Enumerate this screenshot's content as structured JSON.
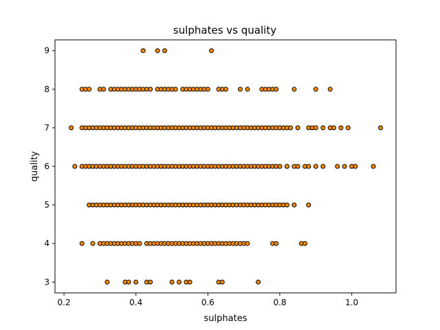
{
  "chart_data": {
    "type": "scatter",
    "title": "sulphates vs quality",
    "xlabel": "sulphates",
    "ylabel": "quality",
    "xlim": [
      0.175,
      1.123
    ],
    "ylim": [
      2.72,
      9.28
    ],
    "xticks": [
      0.2,
      0.4,
      0.6,
      0.8,
      1.0
    ],
    "xtick_labels": [
      "0.2",
      "0.4",
      "0.6",
      "0.8",
      "1.0"
    ],
    "yticks": [
      3,
      4,
      5,
      6,
      7,
      8,
      9
    ],
    "ytick_labels": [
      "3",
      "4",
      "5",
      "6",
      "7",
      "8",
      "9"
    ],
    "grid": false,
    "marker_color": "#ff8c00",
    "marker_edge_color": "#000000",
    "series": [
      {
        "points": [
          [
            0.42,
            9
          ],
          [
            0.46,
            9
          ],
          [
            0.48,
            9
          ],
          [
            0.61,
            9
          ],
          [
            0.25,
            8
          ],
          [
            0.26,
            8
          ],
          [
            0.27,
            8
          ],
          [
            0.3,
            8
          ],
          [
            0.31,
            8
          ],
          [
            0.33,
            8
          ],
          [
            0.34,
            8
          ],
          [
            0.35,
            8
          ],
          [
            0.36,
            8
          ],
          [
            0.37,
            8
          ],
          [
            0.38,
            8
          ],
          [
            0.39,
            8
          ],
          [
            0.4,
            8
          ],
          [
            0.41,
            8
          ],
          [
            0.42,
            8
          ],
          [
            0.43,
            8
          ],
          [
            0.44,
            8
          ],
          [
            0.46,
            8
          ],
          [
            0.47,
            8
          ],
          [
            0.48,
            8
          ],
          [
            0.49,
            8
          ],
          [
            0.5,
            8
          ],
          [
            0.51,
            8
          ],
          [
            0.53,
            8
          ],
          [
            0.54,
            8
          ],
          [
            0.55,
            8
          ],
          [
            0.56,
            8
          ],
          [
            0.57,
            8
          ],
          [
            0.58,
            8
          ],
          [
            0.59,
            8
          ],
          [
            0.6,
            8
          ],
          [
            0.63,
            8
          ],
          [
            0.64,
            8
          ],
          [
            0.65,
            8
          ],
          [
            0.69,
            8
          ],
          [
            0.71,
            8
          ],
          [
            0.75,
            8
          ],
          [
            0.76,
            8
          ],
          [
            0.77,
            8
          ],
          [
            0.78,
            8
          ],
          [
            0.79,
            8
          ],
          [
            0.84,
            8
          ],
          [
            0.9,
            8
          ],
          [
            0.94,
            8
          ],
          [
            0.22,
            7
          ],
          [
            0.25,
            7
          ],
          [
            0.26,
            7
          ],
          [
            0.27,
            7
          ],
          [
            0.28,
            7
          ],
          [
            0.29,
            7
          ],
          [
            0.3,
            7
          ],
          [
            0.31,
            7
          ],
          [
            0.32,
            7
          ],
          [
            0.33,
            7
          ],
          [
            0.34,
            7
          ],
          [
            0.35,
            7
          ],
          [
            0.36,
            7
          ],
          [
            0.37,
            7
          ],
          [
            0.38,
            7
          ],
          [
            0.39,
            7
          ],
          [
            0.4,
            7
          ],
          [
            0.41,
            7
          ],
          [
            0.42,
            7
          ],
          [
            0.43,
            7
          ],
          [
            0.44,
            7
          ],
          [
            0.45,
            7
          ],
          [
            0.46,
            7
          ],
          [
            0.47,
            7
          ],
          [
            0.48,
            7
          ],
          [
            0.49,
            7
          ],
          [
            0.5,
            7
          ],
          [
            0.51,
            7
          ],
          [
            0.52,
            7
          ],
          [
            0.53,
            7
          ],
          [
            0.54,
            7
          ],
          [
            0.55,
            7
          ],
          [
            0.56,
            7
          ],
          [
            0.57,
            7
          ],
          [
            0.58,
            7
          ],
          [
            0.59,
            7
          ],
          [
            0.6,
            7
          ],
          [
            0.61,
            7
          ],
          [
            0.62,
            7
          ],
          [
            0.63,
            7
          ],
          [
            0.64,
            7
          ],
          [
            0.65,
            7
          ],
          [
            0.66,
            7
          ],
          [
            0.67,
            7
          ],
          [
            0.68,
            7
          ],
          [
            0.69,
            7
          ],
          [
            0.7,
            7
          ],
          [
            0.71,
            7
          ],
          [
            0.72,
            7
          ],
          [
            0.73,
            7
          ],
          [
            0.74,
            7
          ],
          [
            0.75,
            7
          ],
          [
            0.76,
            7
          ],
          [
            0.77,
            7
          ],
          [
            0.78,
            7
          ],
          [
            0.79,
            7
          ],
          [
            0.8,
            7
          ],
          [
            0.81,
            7
          ],
          [
            0.82,
            7
          ],
          [
            0.83,
            7
          ],
          [
            0.85,
            7
          ],
          [
            0.88,
            7
          ],
          [
            0.89,
            7
          ],
          [
            0.9,
            7
          ],
          [
            0.92,
            7
          ],
          [
            0.94,
            7
          ],
          [
            0.95,
            7
          ],
          [
            0.97,
            7
          ],
          [
            0.99,
            7
          ],
          [
            1.08,
            7
          ],
          [
            0.23,
            6
          ],
          [
            0.25,
            6
          ],
          [
            0.26,
            6
          ],
          [
            0.27,
            6
          ],
          [
            0.28,
            6
          ],
          [
            0.29,
            6
          ],
          [
            0.3,
            6
          ],
          [
            0.31,
            6
          ],
          [
            0.32,
            6
          ],
          [
            0.33,
            6
          ],
          [
            0.34,
            6
          ],
          [
            0.35,
            6
          ],
          [
            0.36,
            6
          ],
          [
            0.37,
            6
          ],
          [
            0.38,
            6
          ],
          [
            0.39,
            6
          ],
          [
            0.4,
            6
          ],
          [
            0.41,
            6
          ],
          [
            0.42,
            6
          ],
          [
            0.43,
            6
          ],
          [
            0.44,
            6
          ],
          [
            0.45,
            6
          ],
          [
            0.46,
            6
          ],
          [
            0.47,
            6
          ],
          [
            0.48,
            6
          ],
          [
            0.49,
            6
          ],
          [
            0.5,
            6
          ],
          [
            0.51,
            6
          ],
          [
            0.52,
            6
          ],
          [
            0.53,
            6
          ],
          [
            0.54,
            6
          ],
          [
            0.55,
            6
          ],
          [
            0.56,
            6
          ],
          [
            0.57,
            6
          ],
          [
            0.58,
            6
          ],
          [
            0.59,
            6
          ],
          [
            0.6,
            6
          ],
          [
            0.61,
            6
          ],
          [
            0.62,
            6
          ],
          [
            0.63,
            6
          ],
          [
            0.64,
            6
          ],
          [
            0.65,
            6
          ],
          [
            0.66,
            6
          ],
          [
            0.67,
            6
          ],
          [
            0.68,
            6
          ],
          [
            0.69,
            6
          ],
          [
            0.7,
            6
          ],
          [
            0.71,
            6
          ],
          [
            0.72,
            6
          ],
          [
            0.73,
            6
          ],
          [
            0.74,
            6
          ],
          [
            0.75,
            6
          ],
          [
            0.76,
            6
          ],
          [
            0.77,
            6
          ],
          [
            0.78,
            6
          ],
          [
            0.79,
            6
          ],
          [
            0.8,
            6
          ],
          [
            0.82,
            6
          ],
          [
            0.84,
            6
          ],
          [
            0.85,
            6
          ],
          [
            0.87,
            6
          ],
          [
            0.88,
            6
          ],
          [
            0.9,
            6
          ],
          [
            0.92,
            6
          ],
          [
            0.96,
            6
          ],
          [
            0.98,
            6
          ],
          [
            1.0,
            6
          ],
          [
            1.01,
            6
          ],
          [
            1.06,
            6
          ],
          [
            0.27,
            5
          ],
          [
            0.28,
            5
          ],
          [
            0.29,
            5
          ],
          [
            0.3,
            5
          ],
          [
            0.31,
            5
          ],
          [
            0.32,
            5
          ],
          [
            0.33,
            5
          ],
          [
            0.34,
            5
          ],
          [
            0.35,
            5
          ],
          [
            0.36,
            5
          ],
          [
            0.37,
            5
          ],
          [
            0.38,
            5
          ],
          [
            0.39,
            5
          ],
          [
            0.4,
            5
          ],
          [
            0.41,
            5
          ],
          [
            0.42,
            5
          ],
          [
            0.43,
            5
          ],
          [
            0.44,
            5
          ],
          [
            0.45,
            5
          ],
          [
            0.46,
            5
          ],
          [
            0.47,
            5
          ],
          [
            0.48,
            5
          ],
          [
            0.49,
            5
          ],
          [
            0.5,
            5
          ],
          [
            0.51,
            5
          ],
          [
            0.52,
            5
          ],
          [
            0.53,
            5
          ],
          [
            0.54,
            5
          ],
          [
            0.55,
            5
          ],
          [
            0.56,
            5
          ],
          [
            0.57,
            5
          ],
          [
            0.58,
            5
          ],
          [
            0.59,
            5
          ],
          [
            0.6,
            5
          ],
          [
            0.61,
            5
          ],
          [
            0.62,
            5
          ],
          [
            0.63,
            5
          ],
          [
            0.64,
            5
          ],
          [
            0.65,
            5
          ],
          [
            0.66,
            5
          ],
          [
            0.67,
            5
          ],
          [
            0.68,
            5
          ],
          [
            0.69,
            5
          ],
          [
            0.7,
            5
          ],
          [
            0.71,
            5
          ],
          [
            0.72,
            5
          ],
          [
            0.73,
            5
          ],
          [
            0.74,
            5
          ],
          [
            0.75,
            5
          ],
          [
            0.76,
            5
          ],
          [
            0.77,
            5
          ],
          [
            0.78,
            5
          ],
          [
            0.79,
            5
          ],
          [
            0.8,
            5
          ],
          [
            0.81,
            5
          ],
          [
            0.82,
            5
          ],
          [
            0.84,
            5
          ],
          [
            0.88,
            5
          ],
          [
            0.25,
            4
          ],
          [
            0.28,
            4
          ],
          [
            0.3,
            4
          ],
          [
            0.31,
            4
          ],
          [
            0.32,
            4
          ],
          [
            0.33,
            4
          ],
          [
            0.34,
            4
          ],
          [
            0.35,
            4
          ],
          [
            0.36,
            4
          ],
          [
            0.37,
            4
          ],
          [
            0.38,
            4
          ],
          [
            0.39,
            4
          ],
          [
            0.4,
            4
          ],
          [
            0.41,
            4
          ],
          [
            0.43,
            4
          ],
          [
            0.44,
            4
          ],
          [
            0.45,
            4
          ],
          [
            0.46,
            4
          ],
          [
            0.47,
            4
          ],
          [
            0.48,
            4
          ],
          [
            0.49,
            4
          ],
          [
            0.5,
            4
          ],
          [
            0.51,
            4
          ],
          [
            0.52,
            4
          ],
          [
            0.53,
            4
          ],
          [
            0.54,
            4
          ],
          [
            0.55,
            4
          ],
          [
            0.56,
            4
          ],
          [
            0.57,
            4
          ],
          [
            0.58,
            4
          ],
          [
            0.59,
            4
          ],
          [
            0.6,
            4
          ],
          [
            0.61,
            4
          ],
          [
            0.62,
            4
          ],
          [
            0.63,
            4
          ],
          [
            0.64,
            4
          ],
          [
            0.65,
            4
          ],
          [
            0.66,
            4
          ],
          [
            0.67,
            4
          ],
          [
            0.68,
            4
          ],
          [
            0.69,
            4
          ],
          [
            0.7,
            4
          ],
          [
            0.71,
            4
          ],
          [
            0.78,
            4
          ],
          [
            0.79,
            4
          ],
          [
            0.86,
            4
          ],
          [
            0.87,
            4
          ],
          [
            0.32,
            3
          ],
          [
            0.37,
            3
          ],
          [
            0.38,
            3
          ],
          [
            0.4,
            3
          ],
          [
            0.43,
            3
          ],
          [
            0.44,
            3
          ],
          [
            0.5,
            3
          ],
          [
            0.52,
            3
          ],
          [
            0.54,
            3
          ],
          [
            0.55,
            3
          ],
          [
            0.63,
            3
          ],
          [
            0.64,
            3
          ],
          [
            0.74,
            3
          ]
        ]
      }
    ]
  }
}
